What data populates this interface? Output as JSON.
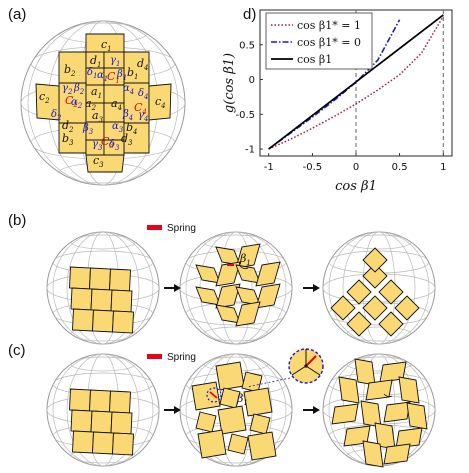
{
  "panel_a": {
    "label": "(a)",
    "tile_labels": [
      {
        "t": "c",
        "s": "1",
        "color": "k"
      },
      {
        "t": "b",
        "s": "2",
        "color": "k"
      },
      {
        "t": "d",
        "s": "1",
        "color": "k"
      },
      {
        "t": "δ",
        "s": "1",
        "color": "b"
      },
      {
        "t": "γ",
        "s": "1",
        "color": "b"
      },
      {
        "t": "α",
        "s": "1",
        "color": "b"
      },
      {
        "t": "C",
        "s": "1",
        "color": "r"
      },
      {
        "t": "β",
        "s": "1",
        "color": "b"
      },
      {
        "t": "b",
        "s": "1",
        "color": "k"
      },
      {
        "t": "d",
        "s": "4",
        "color": "k"
      },
      {
        "t": "c",
        "s": "2",
        "color": "k"
      },
      {
        "t": "γ",
        "s": "2",
        "color": "b"
      },
      {
        "t": "β",
        "s": "2",
        "color": "b"
      },
      {
        "t": "a",
        "s": "1",
        "color": "k"
      },
      {
        "t": "α",
        "s": "4",
        "color": "b"
      },
      {
        "t": "δ",
        "s": "4",
        "color": "b"
      },
      {
        "t": "C",
        "s": "2",
        "color": "r"
      },
      {
        "t": "α",
        "s": "2",
        "color": "b"
      },
      {
        "t": "a",
        "s": "2",
        "color": "k"
      },
      {
        "t": "a",
        "s": "4",
        "color": "k"
      },
      {
        "t": "C",
        "s": "4",
        "color": "r"
      },
      {
        "t": "c",
        "s": "4",
        "color": "k"
      },
      {
        "t": "δ",
        "s": "2",
        "color": "b"
      },
      {
        "t": "a",
        "s": "3",
        "color": "k"
      },
      {
        "t": "β",
        "s": "4",
        "color": "b"
      },
      {
        "t": "γ",
        "s": "4",
        "color": "b"
      },
      {
        "t": "d",
        "s": "2",
        "color": "k"
      },
      {
        "t": "β",
        "s": "3",
        "color": "b"
      },
      {
        "t": "α",
        "s": "3",
        "color": "b"
      },
      {
        "t": "b",
        "s": "4",
        "color": "k"
      },
      {
        "t": "b",
        "s": "3",
        "color": "k"
      },
      {
        "t": "C",
        "s": "3",
        "color": "r"
      },
      {
        "t": "γ",
        "s": "3",
        "color": "b"
      },
      {
        "t": "δ",
        "s": "3",
        "color": "b"
      },
      {
        "t": "d",
        "s": "3",
        "color": "k"
      },
      {
        "t": "c",
        "s": "3",
        "color": "k"
      }
    ]
  },
  "panel_b": {
    "label": "(b)",
    "legend": "Spring",
    "angle_label": "β",
    "angle_sub": "1"
  },
  "panel_c": {
    "label": "(c)",
    "legend": "Spring",
    "angle_label": "β",
    "angle_sub": "1"
  },
  "panel_d": {
    "label": "d)"
  },
  "colors": {
    "tile": "#fad874",
    "spring": "#e3061a",
    "blue": "#1a1acc",
    "series_dotted": "#a01a3c",
    "series_dashdot": "#1a1acc",
    "series_solid": "#000000"
  },
  "chart_data": {
    "type": "line",
    "xlabel": "cos β1",
    "ylabel": "g(cos β1)",
    "xlim": [
      -1.1,
      1.1
    ],
    "ylim": [
      -1.1,
      1.0
    ],
    "xticks": [
      "-1",
      "-0.5",
      "0",
      "0.5",
      "1"
    ],
    "yticks": [
      "-1",
      "-0.5",
      "0",
      "0.5"
    ],
    "legend_position": "top-left",
    "vlines": [
      0,
      1
    ],
    "series": [
      {
        "name": "cos β1* = 1",
        "style": "dotted",
        "x": [
          -1,
          -0.75,
          -0.5,
          -0.25,
          0,
          0.25,
          0.5,
          0.75,
          1
        ],
        "y": [
          -1,
          -0.86,
          -0.7,
          -0.53,
          -0.35,
          -0.15,
          0.07,
          0.38,
          0.91
        ]
      },
      {
        "name": "cos β1* = 0",
        "style": "dashdot",
        "x": [
          -1,
          -0.75,
          -0.5,
          -0.25,
          0,
          0.25,
          0.5
        ],
        "y": [
          -1,
          -0.77,
          -0.54,
          -0.3,
          -0.04,
          0.28,
          0.86
        ]
      },
      {
        "name": "cos β1",
        "style": "solid",
        "x": [
          -1,
          1
        ],
        "y": [
          -1,
          0.93
        ]
      }
    ]
  }
}
